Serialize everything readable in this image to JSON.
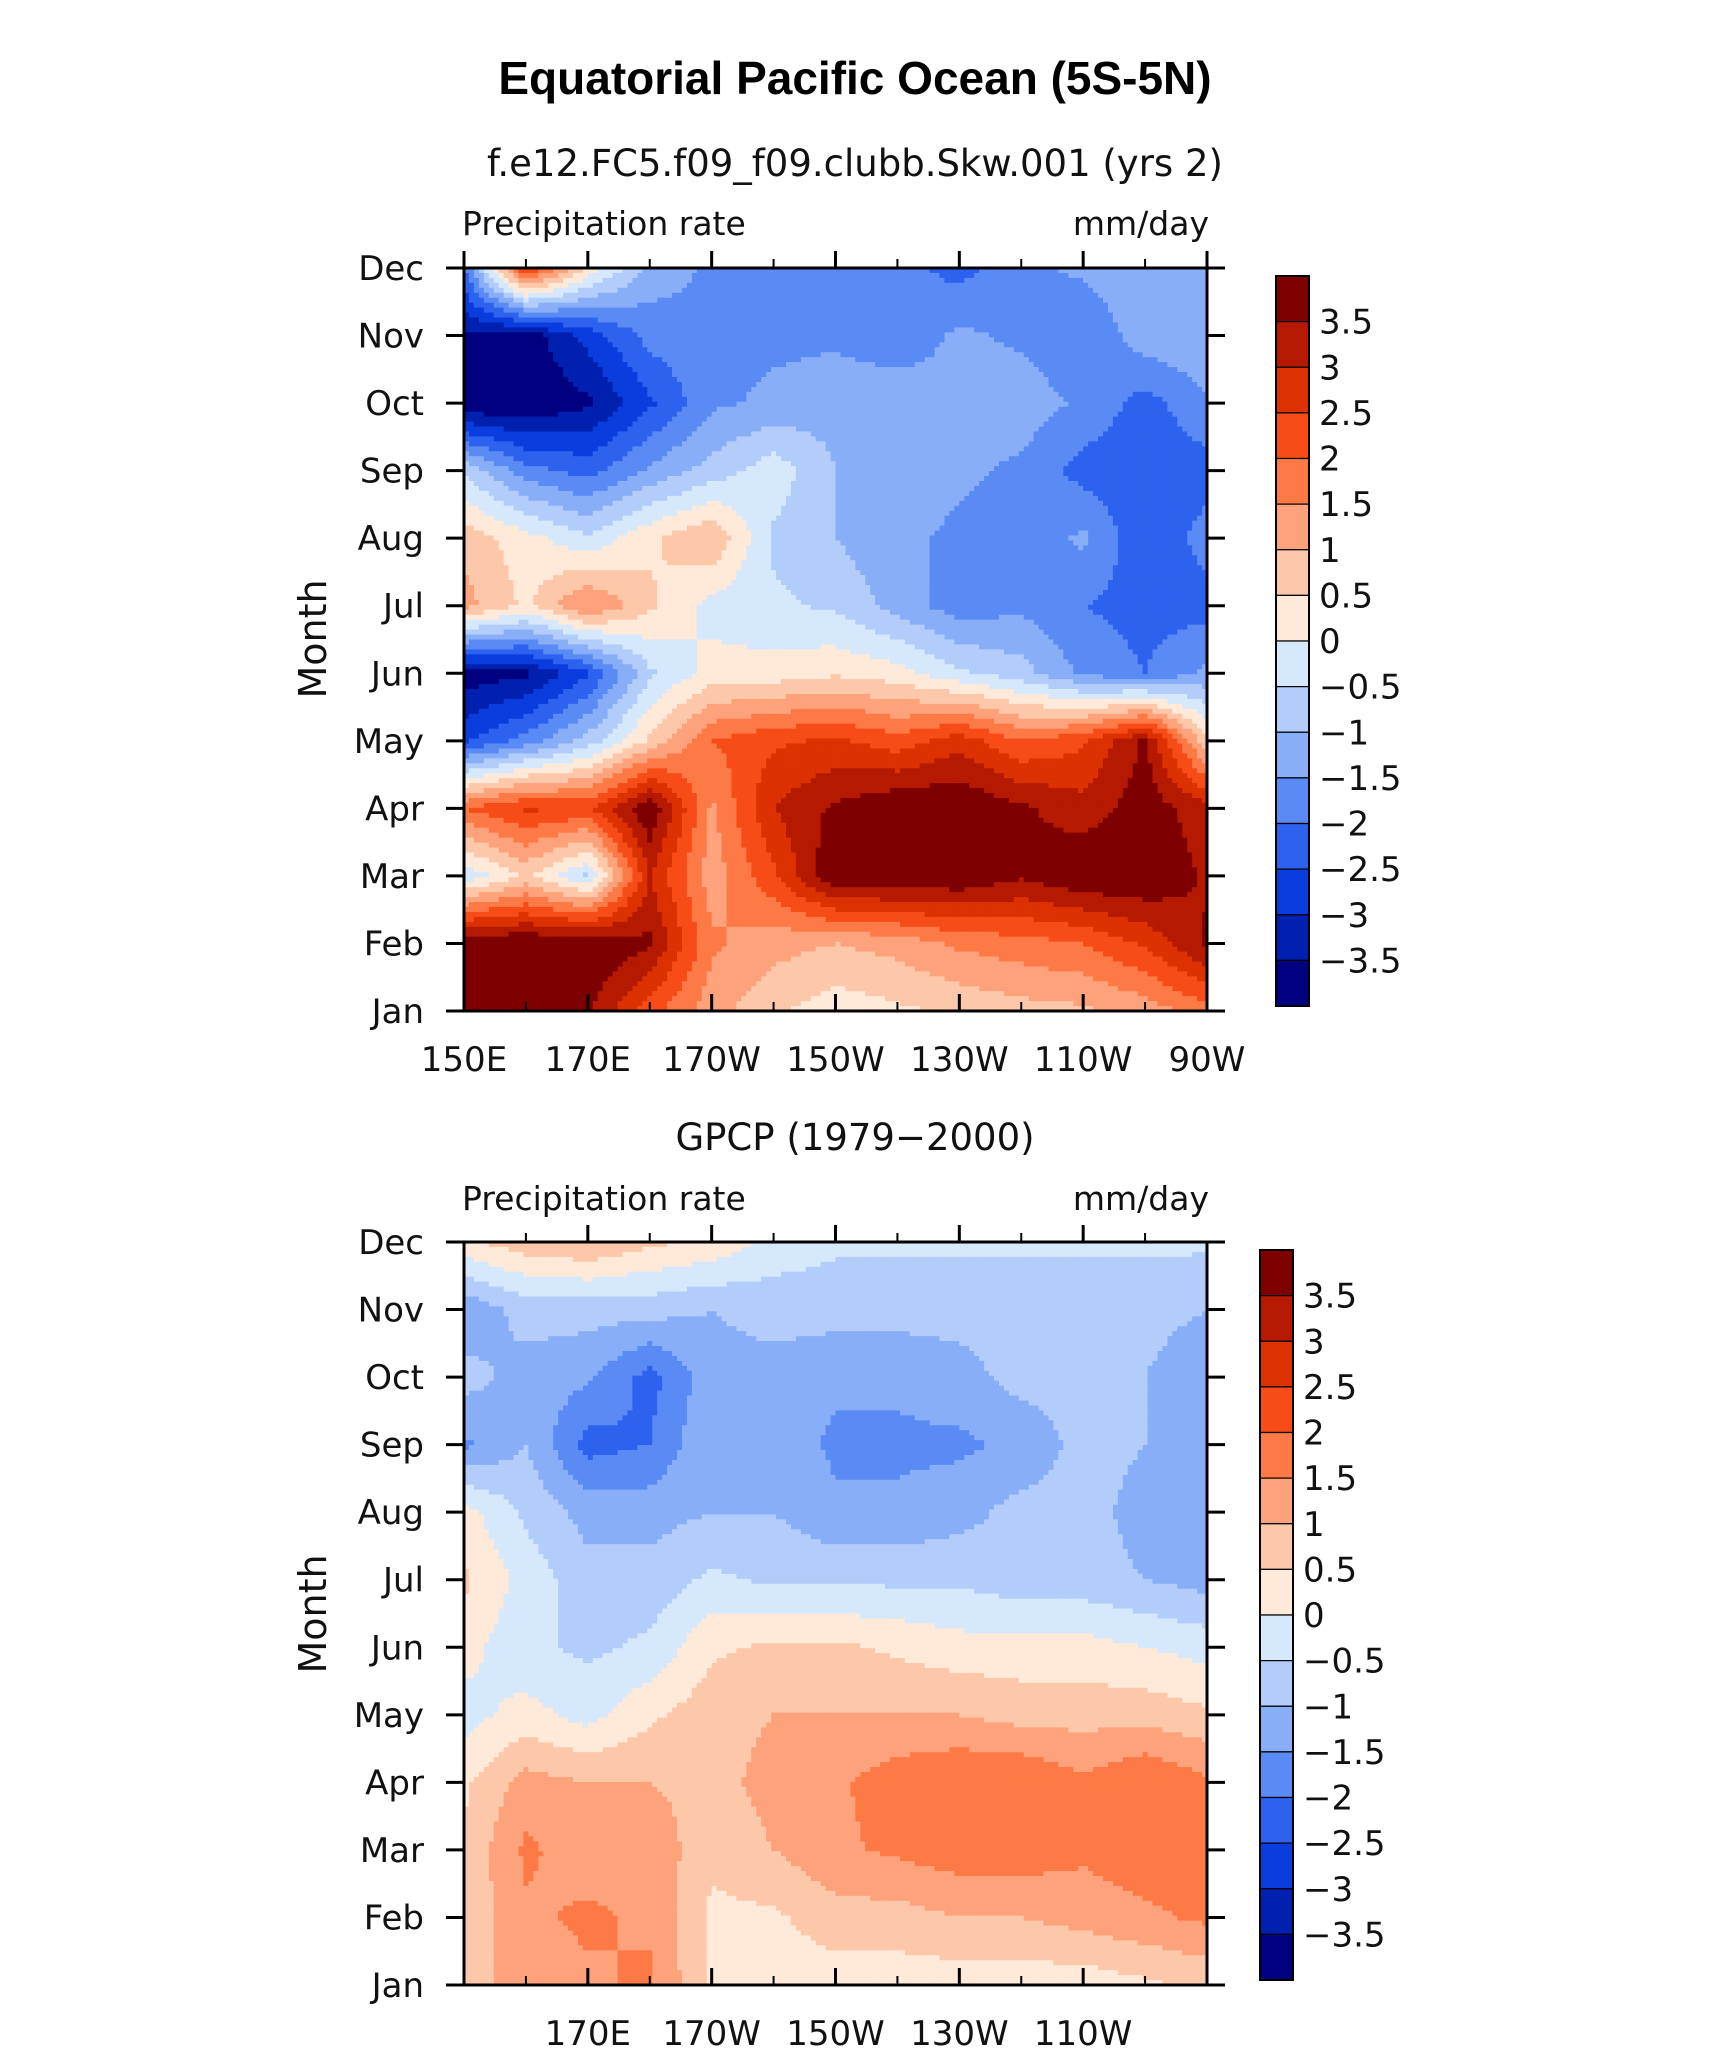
{
  "title": "Equatorial Pacific Ocean (5S-5N)",
  "colorbar": {
    "levels": [
      3.5,
      3,
      2.5,
      2,
      1.5,
      1,
      0.5,
      0,
      -0.5,
      -1,
      -1.5,
      -2,
      -2.5,
      -3,
      -3.5
    ],
    "labels": [
      "3.5",
      "3",
      "2.5",
      "2",
      "1.5",
      "1",
      "0.5",
      "0",
      "−0.5",
      "−1",
      "−1.5",
      "−2",
      "−2.5",
      "−3",
      "−3.5"
    ],
    "colors": [
      "#7f0000",
      "#b51a00",
      "#dc3100",
      "#f74c18",
      "#fd7a46",
      "#fda27b",
      "#fdc8aa",
      "#ffe9d8",
      "#d6e8fc",
      "#b3cdfb",
      "#89aef8",
      "#5a8af4",
      "#2d62ef",
      "#0a3ddd",
      "#0020b0",
      "#000080"
    ]
  },
  "chart_data": [
    {
      "type": "heatmap",
      "title": "f.e12.FC5.f09_f09.clubb.Skw.001 (yrs 2)",
      "left_label": "Precipitation rate",
      "right_label": "mm/day",
      "ylabel": "Month",
      "y_categories": [
        "Jan",
        "Feb",
        "Mar",
        "Apr",
        "May",
        "Jun",
        "Jul",
        "Aug",
        "Sep",
        "Oct",
        "Nov",
        "Dec"
      ],
      "x_range": [
        150,
        270
      ],
      "x_ticks": [
        150,
        170,
        190,
        210,
        230,
        250,
        270
      ],
      "x_tick_labels": [
        "150E",
        "170E",
        "170W",
        "150W",
        "130W",
        "110W",
        "90W"
      ],
      "x_columns": [
        150,
        160,
        170,
        180,
        190,
        200,
        210,
        220,
        230,
        240,
        250,
        260,
        270
      ],
      "z": [
        [
          4.0,
          4.0,
          3.6,
          2.2,
          1.2,
          0.6,
          0.2,
          0.4,
          0.6,
          0.8,
          0.9,
          1.2,
          1.8
        ],
        [
          4.0,
          4.0,
          4.0,
          3.6,
          1.6,
          1.2,
          1.0,
          1.2,
          1.6,
          1.8,
          2.0,
          2.6,
          3.6
        ],
        [
          -0.4,
          0.6,
          -0.6,
          3.0,
          1.2,
          2.4,
          4.0,
          4.0,
          4.0,
          3.6,
          4.0,
          4.0,
          3.4
        ],
        [
          2.0,
          2.6,
          2.4,
          4.0,
          1.4,
          3.0,
          3.6,
          4.0,
          4.0,
          3.6,
          3.2,
          3.8,
          3.2
        ],
        [
          -2.6,
          -1.8,
          -0.8,
          0.6,
          2.0,
          2.4,
          2.6,
          2.2,
          2.8,
          2.0,
          2.4,
          3.6,
          0.6
        ],
        [
          -3.8,
          -3.6,
          -2.6,
          -0.6,
          0.2,
          0.2,
          0.4,
          0.2,
          -0.4,
          -0.8,
          -1.6,
          -2.0,
          -1.4
        ],
        [
          1.2,
          0.4,
          1.6,
          0.6,
          -0.2,
          -0.4,
          -0.6,
          -1.2,
          -1.8,
          -1.6,
          -2.0,
          -2.2,
          -2.2
        ],
        [
          0.8,
          0.2,
          -0.4,
          0.4,
          1.0,
          -0.6,
          -1.0,
          -1.4,
          -1.6,
          -1.8,
          -1.4,
          -2.4,
          -1.8
        ],
        [
          -0.6,
          -1.8,
          -2.2,
          -1.4,
          -0.8,
          -0.2,
          -1.0,
          -1.2,
          -1.4,
          -1.6,
          -2.2,
          -2.4,
          -2.2
        ],
        [
          -4.0,
          -4.0,
          -3.6,
          -2.6,
          -1.6,
          -1.4,
          -1.2,
          -1.2,
          -1.4,
          -1.2,
          -1.6,
          -2.2,
          -1.6
        ],
        [
          -3.6,
          -3.8,
          -2.8,
          -1.8,
          -1.6,
          -1.6,
          -1.6,
          -1.8,
          -1.4,
          -1.6,
          -2.0,
          -1.2,
          -1.0
        ],
        [
          -2.0,
          2.6,
          0.4,
          -1.2,
          -1.6,
          -2.0,
          -1.8,
          -1.8,
          -2.2,
          -1.6,
          -1.4,
          -1.0,
          -1.2
        ]
      ]
    },
    {
      "type": "heatmap",
      "title": "GPCP (1979−2000)",
      "left_label": "Precipitation rate",
      "right_label": "mm/day",
      "ylabel": "Month",
      "y_categories": [
        "Jan",
        "Feb",
        "Mar",
        "Apr",
        "May",
        "Jun",
        "Jul",
        "Aug",
        "Sep",
        "Oct",
        "Nov",
        "Dec"
      ],
      "x_range": [
        150,
        270
      ],
      "x_ticks": [
        170,
        190,
        210,
        230,
        250
      ],
      "x_tick_labels": [
        "170E",
        "170W",
        "150W",
        "130W",
        "110W"
      ],
      "x_columns": [
        150,
        160,
        170,
        180,
        190,
        200,
        210,
        220,
        230,
        240,
        250,
        260,
        270
      ],
      "z": [
        [
          0.8,
          1.2,
          1.4,
          1.6,
          0.4,
          0.2,
          0.2,
          0.2,
          0.2,
          0.2,
          0.2,
          0.4,
          0.6
        ],
        [
          0.6,
          1.4,
          1.6,
          1.4,
          0.4,
          0.4,
          0.8,
          0.8,
          1.0,
          1.0,
          1.2,
          1.4,
          1.6
        ],
        [
          0.6,
          1.6,
          1.2,
          1.4,
          0.6,
          1.0,
          1.4,
          1.6,
          1.8,
          1.8,
          1.6,
          1.8,
          1.6
        ],
        [
          0.4,
          1.2,
          1.0,
          1.0,
          0.8,
          1.2,
          1.4,
          1.8,
          2.0,
          2.0,
          1.6,
          2.0,
          1.6
        ],
        [
          -0.2,
          0.2,
          -0.2,
          0.4,
          0.8,
          1.0,
          1.0,
          1.0,
          1.0,
          0.8,
          0.8,
          0.8,
          0.6
        ],
        [
          0.2,
          -0.4,
          -0.6,
          -0.4,
          0.4,
          0.6,
          0.6,
          0.4,
          0.2,
          0.2,
          0.2,
          0.0,
          -0.2
        ],
        [
          0.6,
          -0.2,
          -0.8,
          -0.8,
          -0.4,
          -0.6,
          -0.6,
          -0.6,
          -0.6,
          -0.8,
          -0.8,
          -1.0,
          -1.2
        ],
        [
          0.2,
          -0.6,
          -1.2,
          -1.2,
          -1.0,
          -1.0,
          -1.4,
          -1.4,
          -1.2,
          -0.8,
          -0.8,
          -1.2,
          -1.0
        ],
        [
          -1.6,
          -1.0,
          -2.2,
          -2.0,
          -1.0,
          -1.2,
          -1.6,
          -1.6,
          -1.6,
          -1.4,
          -0.8,
          -1.0,
          -1.4
        ],
        [
          -0.8,
          -1.2,
          -1.4,
          -2.2,
          -1.2,
          -1.2,
          -1.4,
          -1.4,
          -1.2,
          -0.8,
          -0.8,
          -1.0,
          -1.4
        ],
        [
          -1.4,
          -0.8,
          -0.8,
          -0.8,
          -1.0,
          -0.8,
          -0.8,
          -0.8,
          -0.8,
          -0.8,
          -0.8,
          -0.8,
          -1.0
        ],
        [
          0.4,
          0.8,
          1.0,
          0.6,
          0.4,
          -0.2,
          -0.4,
          -0.4,
          -0.4,
          -0.4,
          -0.4,
          -0.4,
          -0.4
        ]
      ]
    }
  ]
}
